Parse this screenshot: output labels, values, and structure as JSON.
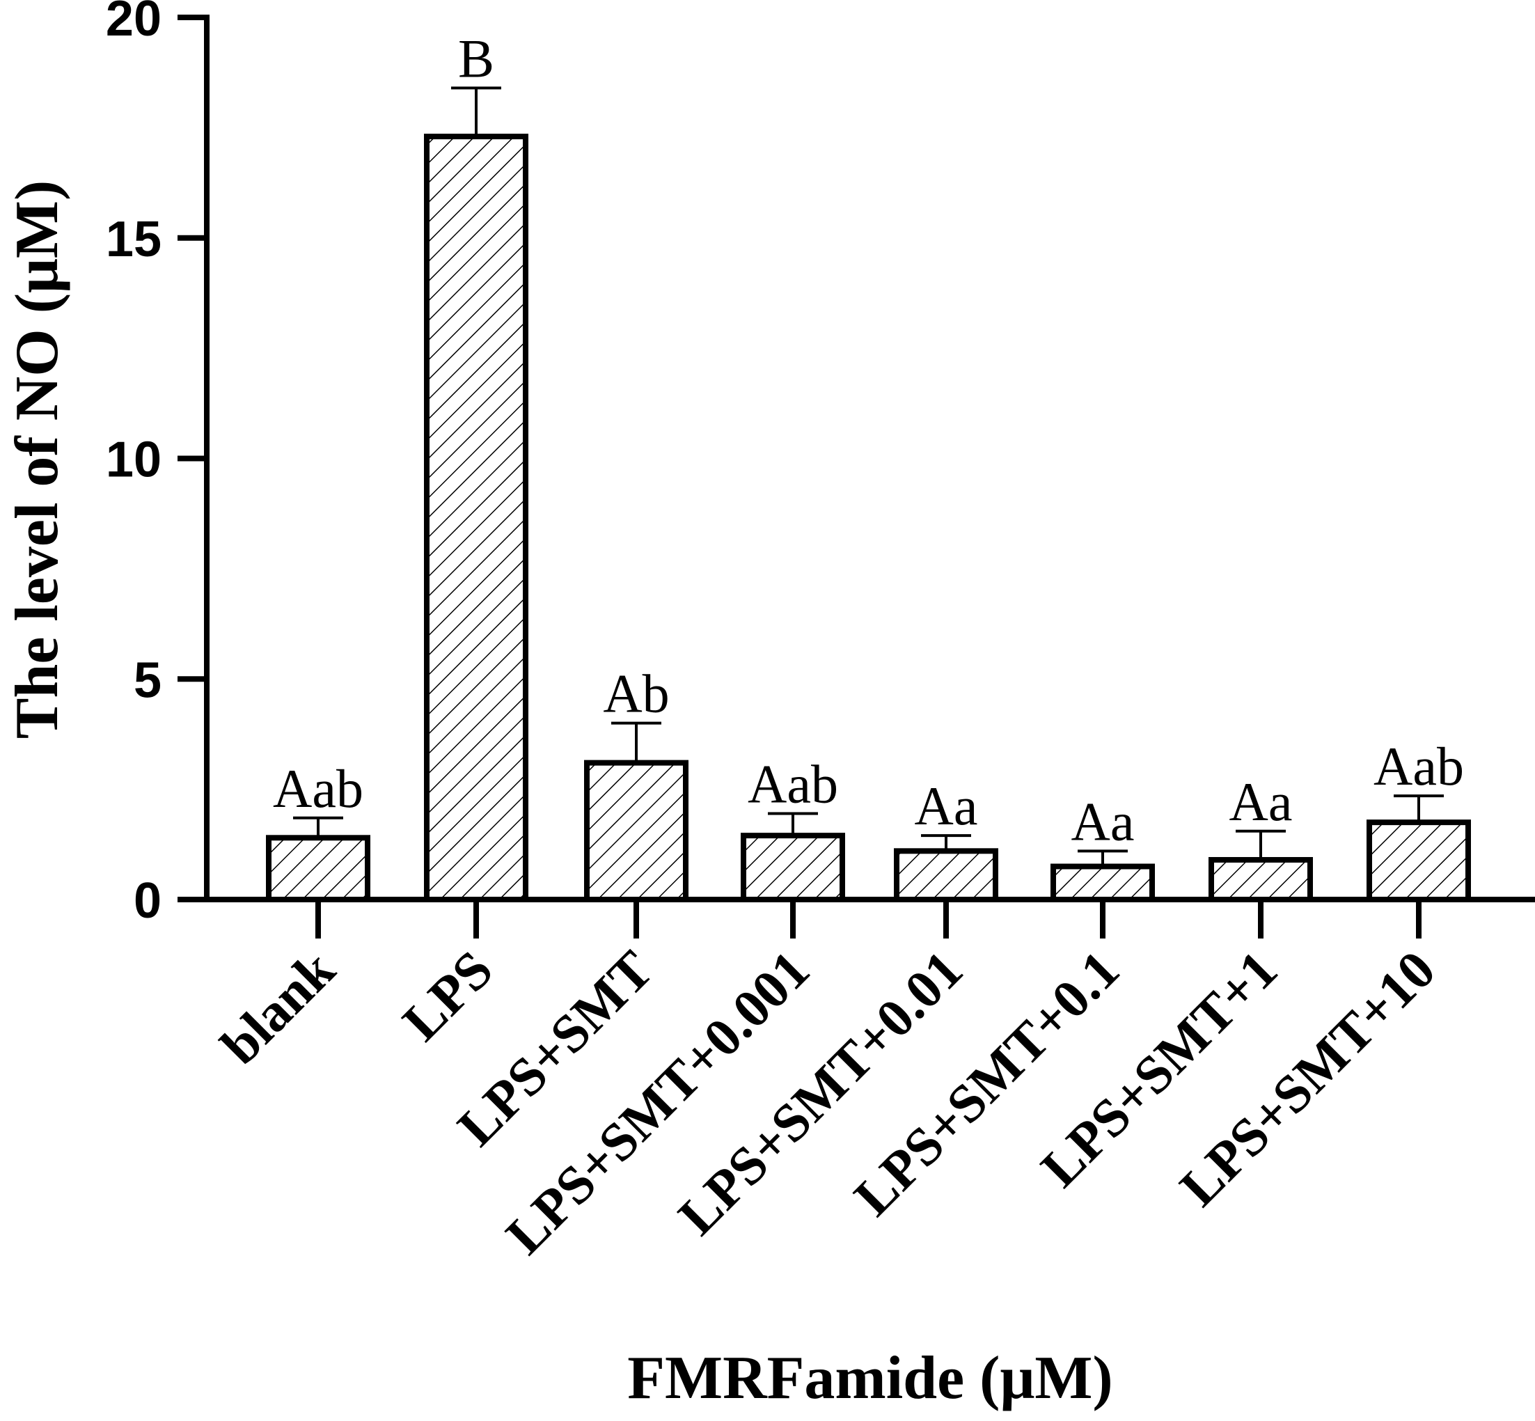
{
  "chart_data": {
    "type": "bar",
    "title": "",
    "xlabel": "FMRFamide (μM)",
    "ylabel": "The level of NO (μM)",
    "ylim": [
      0,
      20
    ],
    "yticks": [
      "0",
      "5",
      "10",
      "15",
      "20"
    ],
    "categories": [
      "blank",
      "LPS",
      "LPS+SMT",
      "LPS+SMT+0.001",
      "LPS+SMT+0.01",
      "LPS+SMT+0.1",
      "LPS+SMT+1",
      "LPS+SMT+10"
    ],
    "values": [
      1.4,
      17.3,
      3.1,
      1.45,
      1.1,
      0.75,
      0.9,
      1.75
    ],
    "errors": [
      0.45,
      1.1,
      0.9,
      0.5,
      0.35,
      0.35,
      0.65,
      0.6
    ],
    "significance_labels": [
      "Aab",
      "B",
      "Ab",
      "Aab",
      "Aa",
      "Aa",
      "Aa",
      "Aab"
    ],
    "grid": false,
    "bar_fill": "hatched",
    "colors": {
      "bar_stroke": "#000000",
      "hatch": "#000000",
      "background": "#ffffff"
    }
  }
}
